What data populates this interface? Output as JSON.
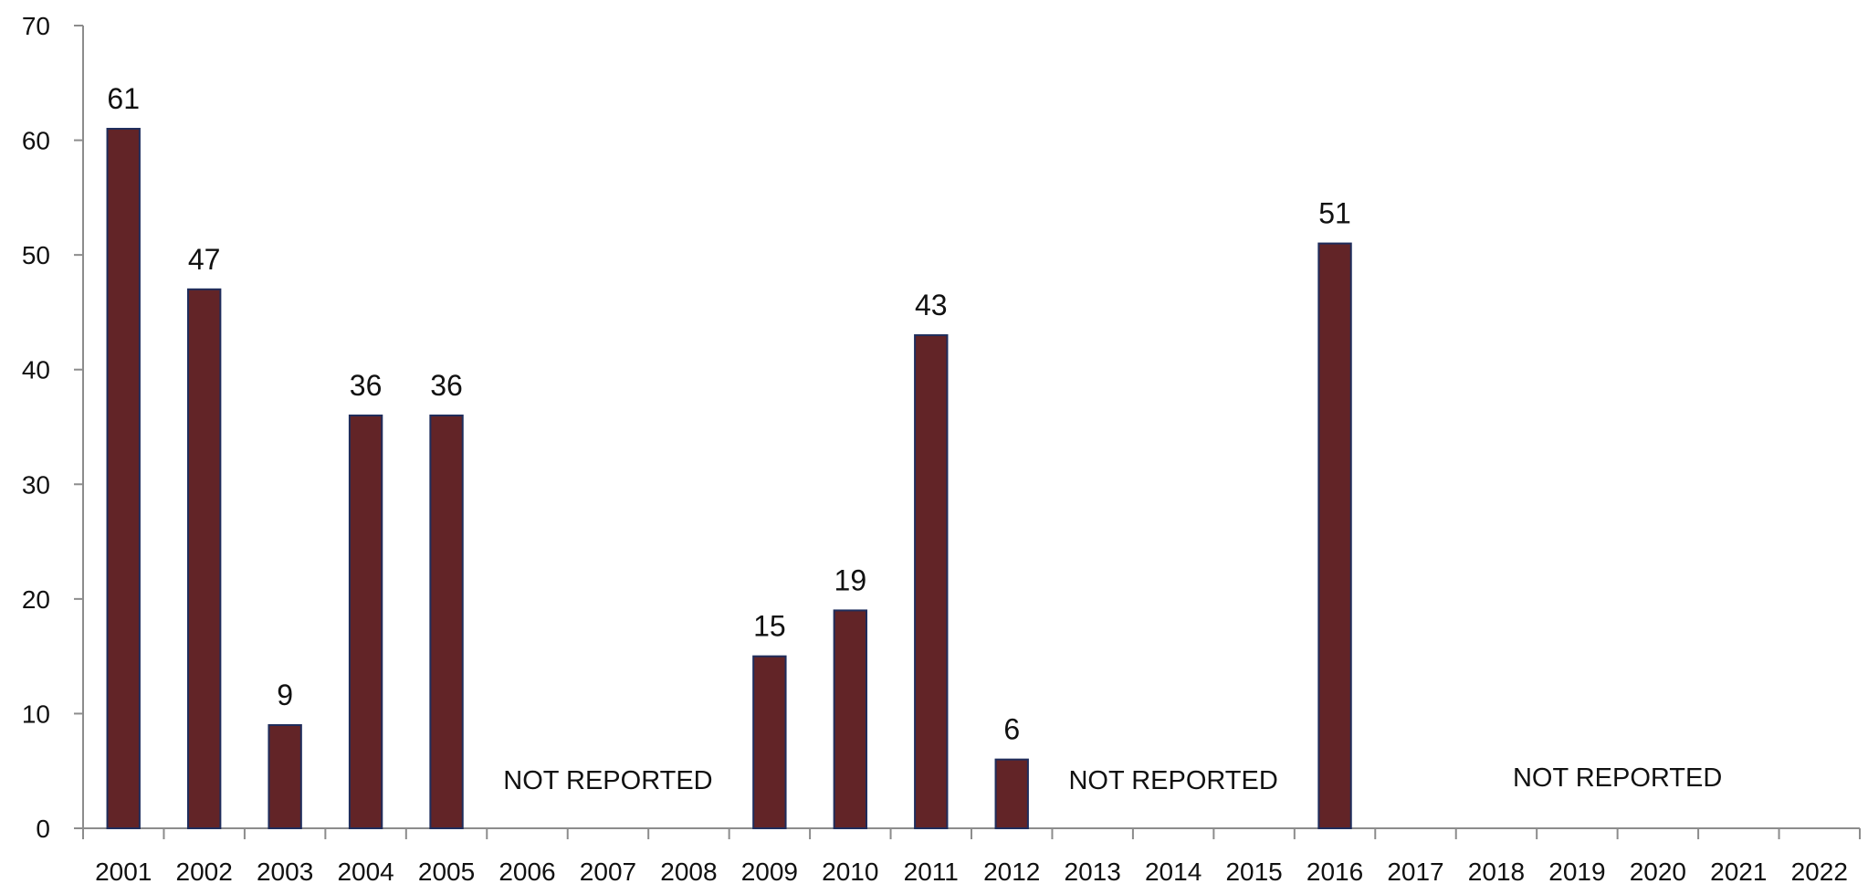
{
  "chart_data": {
    "type": "bar",
    "title": "",
    "xlabel": "",
    "ylabel": "",
    "ylim": [
      0,
      70
    ],
    "yticks": [
      0,
      10,
      20,
      30,
      40,
      50,
      60,
      70
    ],
    "grid": false,
    "legend": "none",
    "categories": [
      "2001",
      "2002",
      "2003",
      "2004",
      "2005",
      "2006",
      "2007",
      "2008",
      "2009",
      "2010",
      "2011",
      "2012",
      "2013",
      "2014",
      "2015",
      "2016",
      "2017",
      "2018",
      "2019",
      "2020",
      "2021",
      "2022"
    ],
    "values": [
      61,
      47,
      9,
      36,
      36,
      null,
      null,
      null,
      15,
      19,
      43,
      6,
      null,
      null,
      null,
      51,
      null,
      null,
      null,
      null,
      null,
      null
    ],
    "data_labels": [
      "61",
      "47",
      "9",
      "36",
      "36",
      "",
      "",
      "",
      "15",
      "19",
      "43",
      "6",
      "",
      "",
      "",
      "51",
      "",
      "",
      "",
      "",
      "",
      ""
    ],
    "annotations": [
      {
        "text": "NOT REPORTED",
        "from_category": "2006",
        "to_category": "2008"
      },
      {
        "text": "NOT REPORTED",
        "from_category": "2013",
        "to_category": "2015"
      },
      {
        "text": "NOT REPORTED",
        "from_category": "2017",
        "to_category": "2022"
      }
    ],
    "colors": {
      "bar_fill": "#622427",
      "bar_stroke": "#1f2d5c",
      "axis": "#8c8c8c",
      "text": "#111111"
    }
  }
}
